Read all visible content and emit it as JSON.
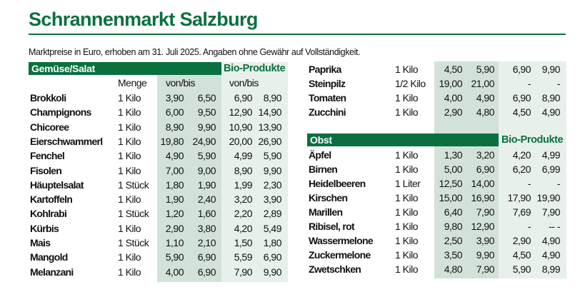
{
  "title": "Schrannenmarkt Salzburg",
  "subtitle": "Marktpreise in Euro, erhoben am 31. Juli 2025. Angaben ohne Gewähr auf Vollständigkeit.",
  "colors": {
    "brand": "#0a7040",
    "shade_conventional": "#d3e2d8",
    "shade_bio": "#e7f0ea"
  },
  "vegetables": {
    "section_label": "Gemüse/Salat",
    "bio_label": "Bio-Produkte",
    "col_menge": "Menge",
    "col_vonbis": "von/bis",
    "col_bio_vonbis": "von/bis",
    "rows": [
      {
        "name": "Brokkoli",
        "qty": "1 Kilo",
        "from": "3,90",
        "to": "6,50",
        "bio_from": "6,90",
        "bio_to": "8,90"
      },
      {
        "name": "Champignons",
        "qty": "1 Kilo",
        "from": "6,00",
        "to": "9,50",
        "bio_from": "12,90",
        "bio_to": "14,90"
      },
      {
        "name": "Chicoree",
        "qty": "1 Kilo",
        "from": "8,90",
        "to": "9,90",
        "bio_from": "10,90",
        "bio_to": "13,90"
      },
      {
        "name": "Eierschwammerl",
        "qty": "1 Kilo",
        "from": "19,80",
        "to": "24,90",
        "bio_from": "20,00",
        "bio_to": "26,90"
      },
      {
        "name": "Fenchel",
        "qty": "1 Kilo",
        "from": "4,90",
        "to": "5,90",
        "bio_from": "4,99",
        "bio_to": "5,90"
      },
      {
        "name": "Fisolen",
        "qty": "1 Kilo",
        "from": "7,00",
        "to": "9,00",
        "bio_from": "8,90",
        "bio_to": "9,90"
      },
      {
        "name": "Häuptelsalat",
        "qty": "1 Stück",
        "from": "1,80",
        "to": "1,90",
        "bio_from": "1,99",
        "bio_to": "2,30"
      },
      {
        "name": "Kartoffeln",
        "qty": "1 Kilo",
        "from": "1,90",
        "to": "2,40",
        "bio_from": "3,20",
        "bio_to": "3,90"
      },
      {
        "name": "Kohlrabi",
        "qty": "1 Stück",
        "from": "1,20",
        "to": "1,60",
        "bio_from": "2,20",
        "bio_to": "2,89"
      },
      {
        "name": "Kürbis",
        "qty": "1 Kilo",
        "from": "2,90",
        "to": "3,80",
        "bio_from": "4,20",
        "bio_to": "5,49"
      },
      {
        "name": "Mais",
        "qty": "1 Stück",
        "from": "1,10",
        "to": "2,10",
        "bio_from": "1,50",
        "bio_to": "1,80"
      },
      {
        "name": "Mangold",
        "qty": "1 Kilo",
        "from": "5,90",
        "to": "6,90",
        "bio_from": "5,59",
        "bio_to": "6,90"
      },
      {
        "name": "Melanzani",
        "qty": "1 Kilo",
        "from": "4,00",
        "to": "6,90",
        "bio_from": "7,90",
        "bio_to": "9,90"
      },
      {
        "name": "Paprika",
        "qty": "1 Kilo",
        "from": "4,50",
        "to": "5,90",
        "bio_from": "6,90",
        "bio_to": "9,90"
      },
      {
        "name": "Steinpilz",
        "qty": "1/2 Kilo",
        "from": "19,00",
        "to": "21,00",
        "bio_from": "-",
        "bio_to": "-"
      },
      {
        "name": "Tomaten",
        "qty": "1 Kilo",
        "from": "4,00",
        "to": "4,90",
        "bio_from": "6,90",
        "bio_to": "8,90"
      },
      {
        "name": "Zucchini",
        "qty": "1 Kilo",
        "from": "2,90",
        "to": "4,80",
        "bio_from": "4,50",
        "bio_to": "4,90"
      }
    ]
  },
  "fruit": {
    "section_label": "Obst",
    "bio_label": "Bio-Produkte",
    "rows": [
      {
        "name": "Äpfel",
        "qty": "1 Kilo",
        "from": "1,30",
        "to": "3,20",
        "bio_from": "4,20",
        "bio_to": "4,99"
      },
      {
        "name": "Birnen",
        "qty": "1 Kilo",
        "from": "5,00",
        "to": "6,90",
        "bio_from": "6,20",
        "bio_to": "6,99"
      },
      {
        "name": "Heidelbeeren",
        "qty": "1 Liter",
        "from": "12,50",
        "to": "14,00",
        "bio_from": "-",
        "bio_to": "-"
      },
      {
        "name": "Kirschen",
        "qty": "1 Kilo",
        "from": "15,00",
        "to": "16,90",
        "bio_from": "17,90",
        "bio_to": "19,90"
      },
      {
        "name": "Marillen",
        "qty": "1 Kilo",
        "from": "6,40",
        "to": "7,90",
        "bio_from": "7,69",
        "bio_to": "7,90"
      },
      {
        "name": "Ribisel, rot",
        "qty": "1 Kilo",
        "from": "9,80",
        "to": "12,90",
        "bio_from": "-",
        "bio_to": "--   -"
      },
      {
        "name": "Wassermelone",
        "qty": "1 Kilo",
        "from": "2,50",
        "to": "3,90",
        "bio_from": "2,90",
        "bio_to": "4,90"
      },
      {
        "name": "Zuckermelone",
        "qty": "1 Kilo",
        "from": "3,50",
        "to": "9,90",
        "bio_from": "4,50",
        "bio_to": "4,90"
      },
      {
        "name": "Zwetschken",
        "qty": "1 Kilo",
        "from": "4,80",
        "to": "7,90",
        "bio_from": "5,90",
        "bio_to": "8,99"
      }
    ]
  }
}
